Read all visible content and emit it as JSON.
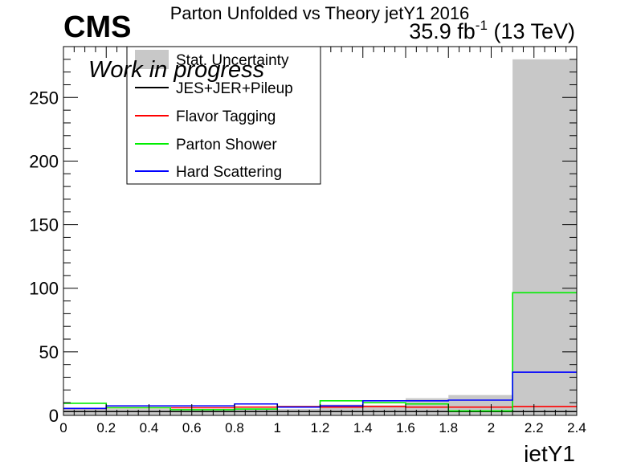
{
  "header": {
    "experiment": "CMS",
    "title": "Parton Unfolded vs Theory jetY1 2016",
    "lumi_value": "35.9 fb",
    "lumi_exp": "-1",
    "lumi_energy": "(13 TeV)",
    "status": "Work in progress"
  },
  "colors": {
    "stat": "#c8c8c8",
    "jes": "#000000",
    "flavor": "#ff0000",
    "shower": "#00ee00",
    "hard": "#0000ff"
  },
  "chart_data": {
    "type": "histogram",
    "xlabel": "jetY1",
    "ylabel": "",
    "xlim": [
      0,
      2.4
    ],
    "ylim": [
      0,
      290
    ],
    "bin_edges": [
      0,
      0.2,
      0.5,
      0.8,
      1.0,
      1.2,
      1.4,
      1.6,
      1.8,
      2.1,
      2.4
    ],
    "x_ticks": [
      "0",
      "0.2",
      "0.4",
      "0.6",
      "0.8",
      "1",
      "1.2",
      "1.4",
      "1.6",
      "1.8",
      "2",
      "2.2",
      "2.4"
    ],
    "y_ticks": [
      "0",
      "50",
      "100",
      "150",
      "200",
      "250"
    ],
    "series": [
      {
        "name": "Stat. Uncertainty",
        "style": "fill",
        "color": "#c8c8c8",
        "values": [
          5.5,
          5,
          5,
          5,
          5,
          8.5,
          8,
          13.5,
          16,
          280
        ]
      },
      {
        "name": "JES+JER+Pileup",
        "style": "line",
        "color": "#000000",
        "values": [
          3,
          3,
          3,
          3,
          3,
          3,
          3,
          3,
          3,
          3
        ]
      },
      {
        "name": "Flavor Tagging",
        "style": "line",
        "color": "#ff0000",
        "values": [
          5.5,
          6,
          6,
          6.5,
          7,
          6.5,
          7,
          6.5,
          6.5,
          7
        ]
      },
      {
        "name": "Parton Shower",
        "style": "line",
        "color": "#00ee00",
        "values": [
          9.5,
          6,
          4.5,
          5,
          6.5,
          11.5,
          10,
          9,
          3.5,
          96.5
        ]
      },
      {
        "name": "Hard Scattering",
        "style": "line",
        "color": "#0000ff",
        "values": [
          5.5,
          7.5,
          7.5,
          9,
          6.5,
          7.5,
          11.5,
          11.5,
          12,
          34
        ]
      }
    ],
    "legend": {
      "position": "top-left"
    }
  }
}
